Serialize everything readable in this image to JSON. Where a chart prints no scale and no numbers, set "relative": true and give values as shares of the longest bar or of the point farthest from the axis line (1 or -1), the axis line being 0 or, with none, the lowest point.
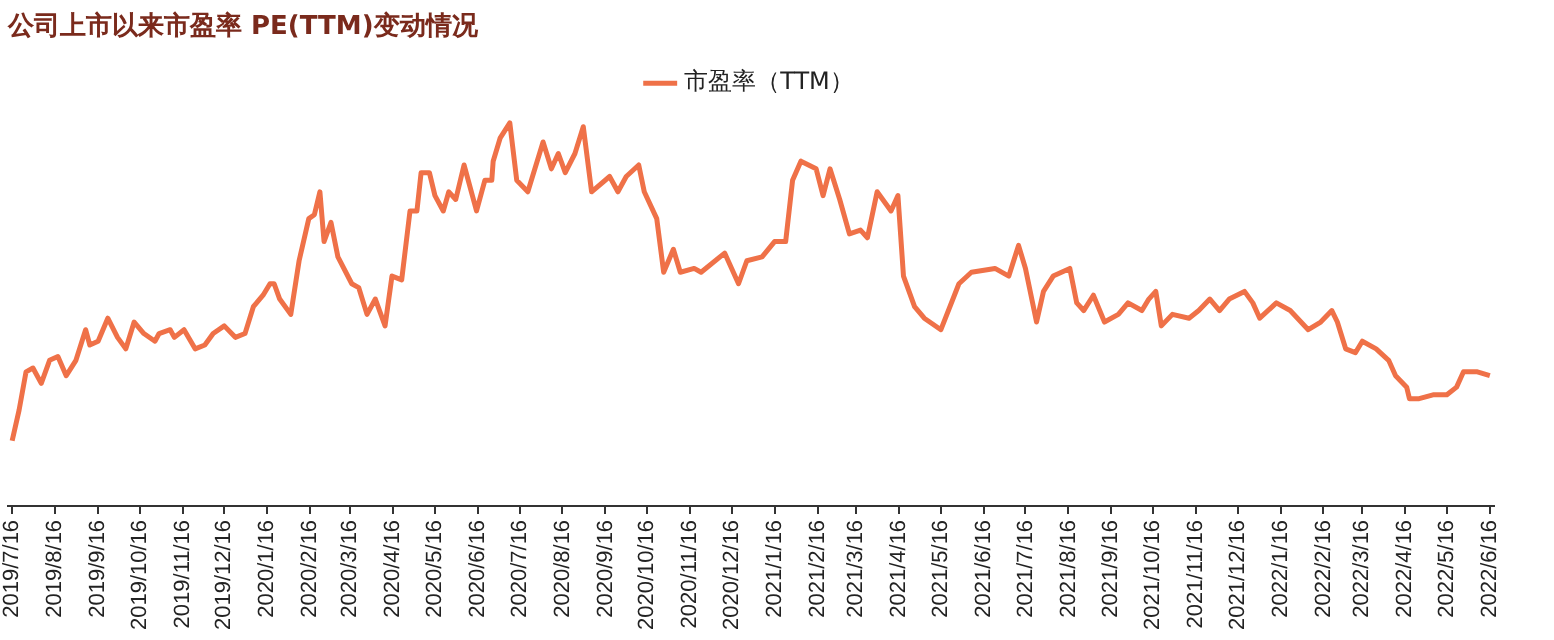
{
  "chart_data": {
    "type": "line",
    "title": "公司上市以来市盈率 PE(TTM)变动情况",
    "relative": true,
    "legend": "top",
    "grid": false,
    "marker": "none",
    "line_style": "solid",
    "xlim": [
      "2019-07-13",
      "2022-06-19"
    ],
    "xticks": [
      {
        "value": "2019-07-16",
        "label": "2019/7/16"
      },
      {
        "value": "2019-08-16",
        "label": "2019/8/16"
      },
      {
        "value": "2019-09-16",
        "label": "2019/9/16"
      },
      {
        "value": "2019-10-16",
        "label": "2019/10/16"
      },
      {
        "value": "2019-11-16",
        "label": "2019/11/16"
      },
      {
        "value": "2019-12-16",
        "label": "2019/12/16"
      },
      {
        "value": "2020-01-16",
        "label": "2020/1/16"
      },
      {
        "value": "2020-02-16",
        "label": "2020/2/16"
      },
      {
        "value": "2020-03-16",
        "label": "2020/3/16"
      },
      {
        "value": "2020-04-16",
        "label": "2020/4/16"
      },
      {
        "value": "2020-05-16",
        "label": "2020/5/16"
      },
      {
        "value": "2020-06-16",
        "label": "2020/6/16"
      },
      {
        "value": "2020-07-16",
        "label": "2020/7/16"
      },
      {
        "value": "2020-08-16",
        "label": "2020/8/16"
      },
      {
        "value": "2020-09-16",
        "label": "2020/9/16"
      },
      {
        "value": "2020-10-16",
        "label": "2020/10/16"
      },
      {
        "value": "2020-11-16",
        "label": "2020/11/16"
      },
      {
        "value": "2020-12-16",
        "label": "2020/12/16"
      },
      {
        "value": "2021-01-16",
        "label": "2021/1/16"
      },
      {
        "value": "2021-02-16",
        "label": "2021/2/16"
      },
      {
        "value": "2021-03-16",
        "label": "2021/3/16"
      },
      {
        "value": "2021-04-16",
        "label": "2021/4/16"
      },
      {
        "value": "2021-05-16",
        "label": "2021/5/16"
      },
      {
        "value": "2021-06-16",
        "label": "2021/6/16"
      },
      {
        "value": "2021-07-16",
        "label": "2021/7/16"
      },
      {
        "value": "2021-08-16",
        "label": "2021/8/16"
      },
      {
        "value": "2021-09-16",
        "label": "2021/9/16"
      },
      {
        "value": "2021-10-16",
        "label": "2021/10/16"
      },
      {
        "value": "2021-11-16",
        "label": "2021/11/16"
      },
      {
        "value": "2021-12-16",
        "label": "2021/12/16"
      },
      {
        "value": "2022-01-16",
        "label": "2022/1/16"
      },
      {
        "value": "2022-02-16",
        "label": "2022/2/16"
      },
      {
        "value": "2022-03-16",
        "label": "2022/3/16"
      },
      {
        "value": "2022-04-16",
        "label": "2022/4/16"
      },
      {
        "value": "2022-05-16",
        "label": "2022/5/16"
      },
      {
        "value": "2022-06-16",
        "label": "2022/6/16"
      }
    ],
    "x": [
      "2019-07-16",
      "2019-07-21",
      "2019-07-26",
      "2019-07-31",
      "2019-08-06",
      "2019-08-12",
      "2019-08-18",
      "2019-08-24",
      "2019-08-31",
      "2019-09-07",
      "2019-09-10",
      "2019-09-16",
      "2019-09-23",
      "2019-09-30",
      "2019-10-06",
      "2019-10-12",
      "2019-10-19",
      "2019-10-27",
      "2019-10-30",
      "2019-11-07",
      "2019-11-10",
      "2019-11-17",
      "2019-11-25",
      "2019-12-02",
      "2019-12-08",
      "2019-12-16",
      "2019-12-24",
      "2019-12-31",
      "2020-01-06",
      "2020-01-13",
      "2020-01-18",
      "2020-01-21",
      "2020-01-25",
      "2020-02-02",
      "2020-02-08",
      "2020-02-15",
      "2020-02-19",
      "2020-02-23",
      "2020-02-26",
      "2020-03-02",
      "2020-03-07",
      "2020-03-17",
      "2020-03-22",
      "2020-03-28",
      "2020-04-03",
      "2020-04-10",
      "2020-04-15",
      "2020-04-22",
      "2020-04-28",
      "2020-05-03",
      "2020-05-06",
      "2020-05-12",
      "2020-05-16",
      "2020-05-22",
      "2020-05-26",
      "2020-05-31",
      "2020-06-06",
      "2020-06-15",
      "2020-06-21",
      "2020-06-26",
      "2020-06-27",
      "2020-07-02",
      "2020-07-09",
      "2020-07-14",
      "2020-07-22",
      "2020-08-02",
      "2020-08-08",
      "2020-08-13",
      "2020-08-18",
      "2020-08-25",
      "2020-08-31",
      "2020-09-06",
      "2020-09-19",
      "2020-09-25",
      "2020-10-01",
      "2020-10-10",
      "2020-10-14",
      "2020-10-23",
      "2020-10-28",
      "2020-11-04",
      "2020-11-09",
      "2020-11-19",
      "2020-11-24",
      "2020-12-11",
      "2020-12-21",
      "2020-12-27",
      "2021-01-07",
      "2021-01-16",
      "2021-01-24",
      "2021-01-29",
      "2021-02-04",
      "2021-02-15",
      "2021-02-20",
      "2021-02-25",
      "2021-03-04",
      "2021-03-11",
      "2021-03-19",
      "2021-03-24",
      "2021-03-31",
      "2021-04-10",
      "2021-04-15",
      "2021-04-19",
      "2021-04-27",
      "2021-05-04",
      "2021-05-16",
      "2021-05-29",
      "2021-06-07",
      "2021-06-24",
      "2021-07-04",
      "2021-07-11",
      "2021-07-16",
      "2021-07-24",
      "2021-07-29",
      "2021-08-05",
      "2021-08-11",
      "2021-08-17",
      "2021-08-22",
      "2021-08-27",
      "2021-09-03",
      "2021-09-11",
      "2021-09-21",
      "2021-09-28",
      "2021-10-08",
      "2021-10-13",
      "2021-10-18",
      "2021-10-22",
      "2021-10-30",
      "2021-11-11",
      "2021-11-18",
      "2021-11-26",
      "2021-12-03",
      "2021-12-10",
      "2021-12-21",
      "2021-12-27",
      "2022-01-01",
      "2022-01-13",
      "2022-01-23",
      "2022-02-05",
      "2022-02-14",
      "2022-02-22",
      "2022-02-26",
      "2022-03-04",
      "2022-03-11",
      "2022-03-16",
      "2022-03-26",
      "2022-04-04",
      "2022-04-09",
      "2022-04-17",
      "2022-04-19",
      "2022-04-26",
      "2022-05-06",
      "2022-05-16",
      "2022-05-23",
      "2022-05-28",
      "2022-06-07",
      "2022-06-16"
    ],
    "series": [
      {
        "name": "市盈率（TTM）",
        "color": "#ef7148",
        "values": [
          0.17,
          0.25,
          0.35,
          0.36,
          0.32,
          0.38,
          0.39,
          0.34,
          0.38,
          0.46,
          0.42,
          0.43,
          0.49,
          0.44,
          0.41,
          0.48,
          0.45,
          0.43,
          0.45,
          0.46,
          0.44,
          0.46,
          0.41,
          0.42,
          0.45,
          0.47,
          0.44,
          0.45,
          0.52,
          0.55,
          0.58,
          0.58,
          0.54,
          0.5,
          0.64,
          0.75,
          0.76,
          0.82,
          0.69,
          0.74,
          0.65,
          0.58,
          0.57,
          0.5,
          0.54,
          0.47,
          0.6,
          0.59,
          0.77,
          0.77,
          0.87,
          0.87,
          0.81,
          0.77,
          0.82,
          0.8,
          0.89,
          0.77,
          0.85,
          0.85,
          0.9,
          0.96,
          1.0,
          0.85,
          0.82,
          0.95,
          0.88,
          0.92,
          0.87,
          0.92,
          0.99,
          0.82,
          0.86,
          0.82,
          0.86,
          0.89,
          0.82,
          0.75,
          0.61,
          0.67,
          0.61,
          0.62,
          0.61,
          0.66,
          0.58,
          0.64,
          0.65,
          0.69,
          0.69,
          0.85,
          0.9,
          0.88,
          0.81,
          0.88,
          0.8,
          0.71,
          0.72,
          0.7,
          0.82,
          0.77,
          0.81,
          0.6,
          0.52,
          0.49,
          0.46,
          0.58,
          0.61,
          0.62,
          0.6,
          0.68,
          0.62,
          0.48,
          0.56,
          0.6,
          0.61,
          0.62,
          0.53,
          0.51,
          0.55,
          0.48,
          0.5,
          0.53,
          0.51,
          0.54,
          0.56,
          0.47,
          0.5,
          0.49,
          0.51,
          0.54,
          0.51,
          0.54,
          0.56,
          0.53,
          0.49,
          0.53,
          0.51,
          0.46,
          0.48,
          0.51,
          0.48,
          0.41,
          0.4,
          0.43,
          0.41,
          0.38,
          0.34,
          0.31,
          0.28,
          0.28,
          0.29,
          0.29,
          0.31,
          0.35,
          0.35,
          0.34
        ]
      }
    ]
  }
}
